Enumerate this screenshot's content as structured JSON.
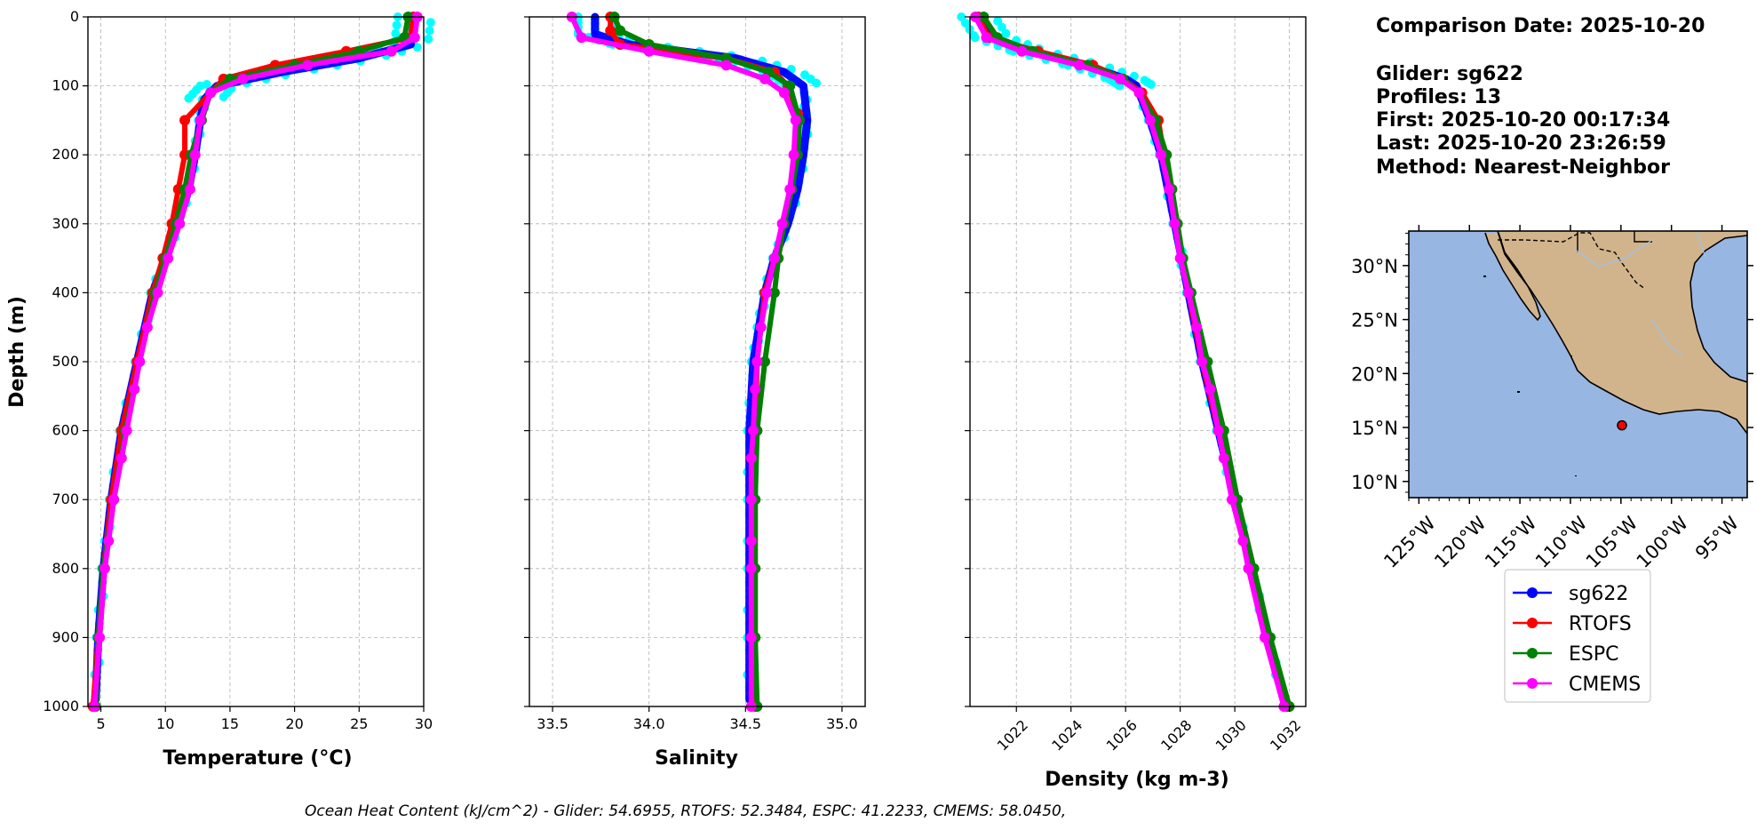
{
  "info": {
    "comparison_date": "Comparison Date: 2025-10-20",
    "glider": "Glider: sg622",
    "profiles": "Profiles: 13",
    "first": "First: 2025-10-20 00:17:34",
    "last": "Last: 2025-10-20 23:26:59",
    "method": "Method: Nearest-Neighbor"
  },
  "footer": "Ocean Heat Content (kJ/cm^2) - Glider: 54.6955,  RTOFS: 52.3484,  ESPC: 41.2233,  CMEMS: 58.0450,",
  "colors": {
    "glider": "#0000ff",
    "glider_scatter": "#00ffff",
    "rtofs": "#ff0000",
    "espc": "#008000",
    "cmems": "#ff00ff",
    "ocean": "#97b6e1",
    "land": "#d2b48c"
  },
  "map": {
    "lat_labels": [
      "30°N",
      "25°N",
      "20°N",
      "15°N",
      "10°N"
    ],
    "lon_labels": [
      "125°W",
      "120°W",
      "115°W",
      "110°W",
      "105°W",
      "100°W",
      "95°W"
    ],
    "glider_location": {
      "lon": -104.9,
      "lat": 15.2
    }
  },
  "legend": [
    "sg622",
    "RTOFS",
    "ESPC",
    "CMEMS"
  ],
  "chart_data": [
    {
      "type": "line",
      "xlabel": "Temperature (°C)",
      "ylabel": "Depth (m)",
      "xlim": [
        4,
        30
      ],
      "ylim": [
        1000,
        0
      ],
      "xticks": [
        5,
        10,
        15,
        20,
        25,
        30
      ],
      "yticks": [
        0,
        100,
        200,
        300,
        400,
        500,
        600,
        700,
        800,
        900,
        1000
      ],
      "grid": true,
      "series": [
        {
          "name": "sg622",
          "depth": [
            0,
            40,
            60,
            80,
            100,
            120,
            150,
            200,
            250,
            300,
            350,
            400,
            500,
            600,
            700,
            800,
            900,
            990
          ],
          "values": [
            29.3,
            29.0,
            25.0,
            19.0,
            14.0,
            13.0,
            12.7,
            12.3,
            11.8,
            11.0,
            10.0,
            9.0,
            7.8,
            6.6,
            5.8,
            5.2,
            4.8,
            4.6
          ]
        },
        {
          "name": "RTOFS",
          "depth": [
            0,
            30,
            50,
            70,
            90,
            110,
            150,
            200,
            250,
            300,
            350,
            400,
            500,
            600,
            700,
            800,
            900,
            1000
          ],
          "values": [
            29.2,
            29.0,
            24.0,
            18.5,
            14.5,
            13.5,
            11.5,
            11.5,
            11.0,
            10.5,
            9.8,
            9.0,
            7.8,
            6.6,
            5.8,
            5.2,
            4.8,
            4.4
          ]
        },
        {
          "name": "ESPC",
          "depth": [
            0,
            30,
            50,
            70,
            90,
            110,
            150,
            200,
            250,
            300,
            350,
            400,
            500,
            600,
            700,
            800,
            900,
            1000
          ],
          "values": [
            28.8,
            28.5,
            25.0,
            20.0,
            15.0,
            13.5,
            12.8,
            12.0,
            11.5,
            10.8,
            10.0,
            9.2,
            8.0,
            6.9,
            6.0,
            5.2,
            4.8,
            4.6
          ]
        },
        {
          "name": "CMEMS",
          "depth": [
            0,
            30,
            50,
            70,
            90,
            110,
            150,
            200,
            250,
            300,
            350,
            400,
            450,
            500,
            540,
            600,
            640,
            700,
            760,
            800,
            900,
            1000
          ],
          "values": [
            29.5,
            29.3,
            27.5,
            21.0,
            16.0,
            13.5,
            12.7,
            12.3,
            11.9,
            11.1,
            10.2,
            9.4,
            8.6,
            8.0,
            7.6,
            7.0,
            6.6,
            6.0,
            5.6,
            5.3,
            4.9,
            4.5
          ]
        }
      ]
    },
    {
      "type": "line",
      "xlabel": "Salinity",
      "xlim": [
        33.38,
        35.12
      ],
      "ylim": [
        1000,
        0
      ],
      "xticks": [
        33.5,
        34.0,
        34.5,
        35.0
      ],
      "xtick_labels": [
        "33.5",
        "34.0",
        "34.5",
        "35.0"
      ],
      "grid": true,
      "series": [
        {
          "name": "sg622",
          "depth": [
            0,
            25,
            40,
            60,
            80,
            100,
            150,
            200,
            250,
            300,
            350,
            400,
            450,
            500,
            600,
            700,
            800,
            900,
            990
          ],
          "values": [
            33.72,
            33.72,
            33.9,
            34.45,
            34.7,
            34.8,
            34.82,
            34.8,
            34.77,
            34.72,
            34.65,
            34.6,
            34.57,
            34.54,
            34.52,
            34.52,
            34.52,
            34.52,
            34.52
          ]
        },
        {
          "name": "RTOFS",
          "depth": [
            0,
            20,
            40,
            60,
            80,
            100,
            140,
            200,
            250,
            300,
            350,
            400,
            500,
            600,
            700,
            800,
            900,
            1000
          ],
          "values": [
            33.8,
            33.8,
            33.85,
            34.4,
            34.65,
            34.72,
            34.77,
            34.76,
            34.74,
            34.7,
            34.65,
            34.6,
            34.56,
            34.55,
            34.55,
            34.55,
            34.55,
            34.55
          ]
        },
        {
          "name": "ESPC",
          "depth": [
            0,
            20,
            40,
            60,
            80,
            100,
            150,
            200,
            250,
            300,
            350,
            400,
            500,
            600,
            700,
            800,
            900,
            1000
          ],
          "values": [
            33.82,
            33.85,
            34.0,
            34.4,
            34.62,
            34.73,
            34.78,
            34.77,
            34.74,
            34.7,
            34.67,
            34.65,
            34.6,
            34.56,
            34.55,
            34.55,
            34.55,
            34.56
          ]
        },
        {
          "name": "CMEMS",
          "depth": [
            0,
            30,
            50,
            70,
            90,
            110,
            150,
            200,
            250,
            300,
            350,
            400,
            450,
            500,
            540,
            600,
            640,
            700,
            760,
            800,
            900,
            1000
          ],
          "values": [
            33.6,
            33.65,
            34.0,
            34.4,
            34.6,
            34.7,
            34.76,
            34.75,
            34.73,
            34.69,
            34.65,
            34.61,
            34.58,
            34.56,
            34.55,
            34.54,
            34.53,
            34.53,
            34.53,
            34.53,
            34.53,
            34.53
          ]
        }
      ]
    },
    {
      "type": "line",
      "xlabel": "Density (kg m-3)",
      "xlim": [
        1020.3,
        1032.6
      ],
      "ylim": [
        1000,
        0
      ],
      "xticks": [
        1022,
        1024,
        1026,
        1028,
        1030,
        1032
      ],
      "grid": true,
      "series": [
        {
          "name": "sg622",
          "depth": [
            0,
            30,
            50,
            70,
            90,
            100,
            150,
            200,
            300,
            400,
            500,
            600,
            700,
            800,
            900,
            990
          ],
          "values": [
            1020.6,
            1021.1,
            1022.5,
            1024.5,
            1026.0,
            1026.4,
            1026.9,
            1027.3,
            1027.8,
            1028.3,
            1028.8,
            1029.4,
            1030.0,
            1030.6,
            1031.2,
            1031.8
          ]
        },
        {
          "name": "RTOFS",
          "depth": [
            0,
            30,
            50,
            70,
            90,
            110,
            150,
            200,
            250,
            300,
            400,
            500,
            600,
            700,
            800,
            900,
            1000
          ],
          "values": [
            1020.6,
            1021.0,
            1022.8,
            1024.8,
            1025.9,
            1026.6,
            1027.2,
            1027.4,
            1027.6,
            1027.8,
            1028.3,
            1028.8,
            1029.4,
            1030.0,
            1030.6,
            1031.2,
            1031.9
          ]
        },
        {
          "name": "ESPC",
          "depth": [
            0,
            30,
            50,
            70,
            90,
            110,
            150,
            200,
            250,
            300,
            350,
            400,
            500,
            600,
            700,
            800,
            900,
            1000
          ],
          "values": [
            1020.8,
            1021.3,
            1022.6,
            1024.6,
            1025.9,
            1026.5,
            1027.1,
            1027.5,
            1027.7,
            1027.9,
            1028.1,
            1028.4,
            1029.0,
            1029.6,
            1030.1,
            1030.7,
            1031.3,
            1032.0
          ]
        },
        {
          "name": "CMEMS",
          "depth": [
            0,
            30,
            50,
            70,
            90,
            110,
            150,
            200,
            250,
            300,
            350,
            400,
            450,
            500,
            540,
            600,
            640,
            700,
            760,
            800,
            900,
            1000
          ],
          "values": [
            1020.5,
            1020.9,
            1022.2,
            1024.3,
            1025.8,
            1026.5,
            1026.9,
            1027.3,
            1027.6,
            1027.8,
            1028.0,
            1028.3,
            1028.6,
            1028.8,
            1029.1,
            1029.4,
            1029.6,
            1029.9,
            1030.3,
            1030.5,
            1031.1,
            1031.8
          ]
        }
      ]
    }
  ]
}
